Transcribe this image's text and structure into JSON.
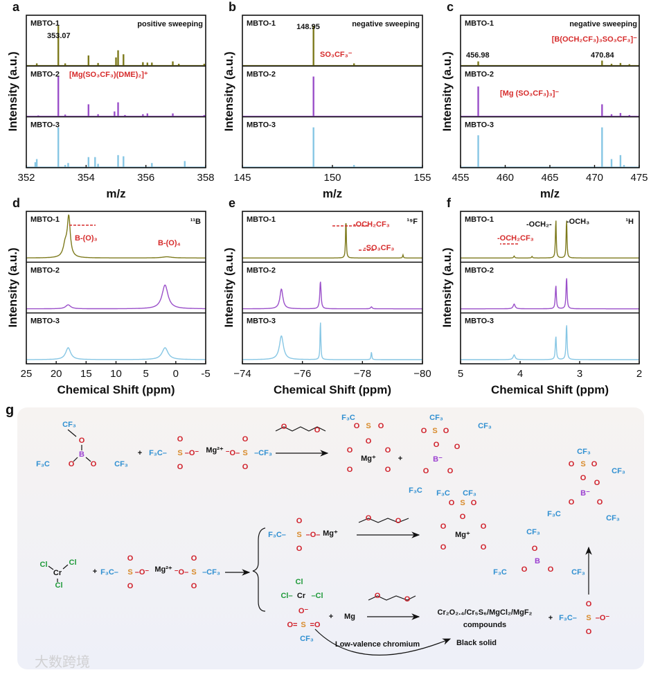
{
  "colors": {
    "MBTO-1": "#7d7a1c",
    "MBTO-2": "#9a4fc9",
    "MBTO-3": "#86c6e4",
    "annotation_red": "#d62b2b"
  },
  "chart_data": [
    {
      "panel": "a",
      "type": "bar",
      "title": "",
      "xlabel": "m/z",
      "ylabel": "Intensity (a.u.)",
      "xlim": [
        352,
        358
      ],
      "xticks": [
        "352",
        "354",
        "356",
        "358"
      ],
      "series": [
        {
          "name": "MBTO-1",
          "peaks": [
            [
              352.35,
              0.05
            ],
            [
              353.07,
              1.0
            ],
            [
              353.3,
              0.05
            ],
            [
              354.08,
              0.25
            ],
            [
              354.4,
              0.06
            ],
            [
              355.0,
              0.2
            ],
            [
              355.07,
              0.38
            ],
            [
              355.25,
              0.28
            ],
            [
              355.9,
              0.08
            ],
            [
              356.05,
              0.07
            ],
            [
              356.2,
              0.07
            ],
            [
              356.9,
              0.1
            ],
            [
              357.1,
              0.04
            ],
            [
              357.95,
              0.04
            ]
          ]
        },
        {
          "name": "MBTO-2",
          "peaks": [
            [
              352.4,
              0.02
            ],
            [
              353.07,
              1.0
            ],
            [
              353.3,
              0.04
            ],
            [
              354.08,
              0.3
            ],
            [
              354.4,
              0.05
            ],
            [
              354.95,
              0.12
            ],
            [
              355.07,
              0.35
            ],
            [
              355.3,
              0.03
            ],
            [
              355.9,
              0.05
            ],
            [
              356.05,
              0.07
            ],
            [
              356.9,
              0.07
            ],
            [
              357.95,
              0.03
            ]
          ]
        },
        {
          "name": "MBTO-3",
          "peaks": [
            [
              352.3,
              0.12
            ],
            [
              352.35,
              0.2
            ],
            [
              353.07,
              1.0
            ],
            [
              353.3,
              0.05
            ],
            [
              353.4,
              0.1
            ],
            [
              354.08,
              0.25
            ],
            [
              354.3,
              0.25
            ],
            [
              354.4,
              0.08
            ],
            [
              355.07,
              0.3
            ],
            [
              355.25,
              0.27
            ],
            [
              356.2,
              0.1
            ],
            [
              357.3,
              0.15
            ]
          ]
        }
      ],
      "annotations": [
        "353.07",
        "positive sweeping",
        "[Mg(SO₃CF₃)(DME)₂]⁺"
      ]
    },
    {
      "panel": "b",
      "type": "bar",
      "title": "",
      "xlabel": "m/z",
      "ylabel": "Intensity (a.u.)",
      "xlim": [
        145,
        155
      ],
      "xticks": [
        "145",
        "150",
        "155"
      ],
      "series": [
        {
          "name": "MBTO-1",
          "peaks": [
            [
              148.95,
              1.0
            ],
            [
              151.2,
              0.05
            ]
          ]
        },
        {
          "name": "MBTO-2",
          "peaks": [
            [
              148.95,
              1.0
            ]
          ]
        },
        {
          "name": "MBTO-3",
          "peaks": [
            [
              148.95,
              1.0
            ],
            [
              151.2,
              0.05
            ]
          ]
        }
      ],
      "annotations": [
        "148.95",
        "negative sweeping",
        "SO₃CF₃⁻"
      ]
    },
    {
      "panel": "c",
      "type": "bar",
      "title": "",
      "xlabel": "m/z",
      "ylabel": "Intensity (a.u.)",
      "xlim": [
        455,
        475
      ],
      "xticks": [
        "455",
        "460",
        "465",
        "470",
        "475"
      ],
      "series": [
        {
          "name": "MBTO-1",
          "peaks": [
            [
              456.98,
              0.1
            ],
            [
              470.84,
              0.12
            ],
            [
              471.9,
              0.04
            ],
            [
              472.9,
              0.06
            ],
            [
              473.9,
              0.03
            ]
          ]
        },
        {
          "name": "MBTO-2",
          "peaks": [
            [
              456.98,
              0.75
            ],
            [
              470.84,
              0.3
            ],
            [
              471.9,
              0.05
            ],
            [
              472.9,
              0.08
            ],
            [
              473.9,
              0.03
            ]
          ]
        },
        {
          "name": "MBTO-3",
          "peaks": [
            [
              456.98,
              0.8
            ],
            [
              470.84,
              1.0
            ],
            [
              471.9,
              0.2
            ],
            [
              472.9,
              0.3
            ],
            [
              473.3,
              0.05
            ]
          ]
        }
      ],
      "annotations": [
        "negative sweeping",
        "[B(OCH₂CF₃)₃SO₃CF₃]⁻",
        "456.98",
        "470.84",
        "[Mg (SO₃CF₃)₃]⁻"
      ]
    },
    {
      "panel": "d",
      "type": "line",
      "title": "",
      "xlabel": "Chemical Shift (ppm)",
      "ylabel": "Intensity (a.u.)",
      "xlim": [
        25,
        -5
      ],
      "xticks": [
        "25",
        "20",
        "15",
        "10",
        "5",
        "0",
        "-5"
      ],
      "series": [
        {
          "name": "MBTO-1",
          "peaks": [
            [
              18.5,
              0.3,
              0.4
            ],
            [
              17.9,
              1.0,
              0.3
            ],
            [
              1.5,
              0.03,
              1.0
            ]
          ]
        },
        {
          "name": "MBTO-2",
          "peaks": [
            [
              18.0,
              0.1,
              0.5
            ],
            [
              1.8,
              0.6,
              0.6
            ]
          ]
        },
        {
          "name": "MBTO-3",
          "peaks": [
            [
              18.0,
              0.3,
              0.5
            ],
            [
              1.8,
              0.3,
              0.6
            ]
          ]
        }
      ],
      "annotations": [
        "¹¹B",
        "B-(O)₃",
        "B-(O)₄"
      ]
    },
    {
      "panel": "e",
      "type": "line",
      "title": "",
      "xlabel": "Chemical Shift (ppm)",
      "ylabel": "Intensity (a.u.)",
      "xlim": [
        -74,
        -80
      ],
      "xticks": [
        "−74",
        "−76",
        "−78",
        "−80"
      ],
      "series": [
        {
          "name": "MBTO-1",
          "peaks": [
            [
              -77.45,
              1.0,
              0.015
            ],
            [
              -79.35,
              0.08,
              0.015
            ]
          ]
        },
        {
          "name": "MBTO-2",
          "peaks": [
            [
              -75.3,
              0.5,
              0.06
            ],
            [
              -76.6,
              0.7,
              0.025
            ],
            [
              -78.3,
              0.05,
              0.03
            ]
          ]
        },
        {
          "name": "MBTO-3",
          "peaks": [
            [
              -75.3,
              0.6,
              0.08
            ],
            [
              -76.6,
              1.0,
              0.015
            ],
            [
              -78.3,
              0.2,
              0.015
            ]
          ]
        }
      ],
      "annotations": [
        "¹⁹F",
        "-OCH₂CF₃",
        "-SO₃CF₃"
      ]
    },
    {
      "panel": "f",
      "type": "line",
      "title": "",
      "xlabel": "Chemical Shift (ppm)",
      "ylabel": "Intensity (a.u.)",
      "xlim": [
        5,
        2
      ],
      "xticks": [
        "5",
        "4",
        "3",
        "2"
      ],
      "series": [
        {
          "name": "MBTO-1",
          "peaks": [
            [
              3.4,
              1.0,
              0.008
            ],
            [
              3.22,
              1.0,
              0.008
            ],
            [
              3.8,
              0.04,
              0.01
            ],
            [
              4.1,
              0.05,
              0.01
            ]
          ]
        },
        {
          "name": "MBTO-2",
          "peaks": [
            [
              3.4,
              0.6,
              0.01
            ],
            [
              3.22,
              0.8,
              0.01
            ],
            [
              4.1,
              0.12,
              0.02
            ]
          ]
        },
        {
          "name": "MBTO-3",
          "peaks": [
            [
              3.4,
              0.6,
              0.01
            ],
            [
              3.22,
              0.9,
              0.01
            ],
            [
              4.1,
              0.12,
              0.02
            ]
          ]
        }
      ],
      "annotations": [
        "¹H",
        "-OCH₂-",
        "-OCH₃",
        "-OCH₂CF₃"
      ]
    }
  ],
  "panel_g": {
    "label": "g",
    "items": [
      "CF₃",
      "O",
      "B",
      "O",
      "O",
      "F₃C",
      "CF₃",
      "+",
      "F₃C–",
      "S",
      "O",
      "O",
      "–O⁻",
      "Mg²⁺",
      "⁻O–",
      "S",
      "O",
      "O",
      "–CF₃",
      "O",
      "O",
      "F₃C",
      "S",
      "O",
      "O",
      "O",
      "Mg⁺",
      "O",
      "O",
      "O",
      "O",
      "+",
      "CF₃",
      "O",
      "S",
      "O",
      "O",
      "B⁻",
      "O",
      "O",
      "O",
      "CF₃",
      "F₃C",
      "CF₃",
      "Cl",
      "Cl",
      "Cr",
      "Cl",
      "+",
      "F₃C–",
      "S",
      "O",
      "O",
      "–O⁻",
      "Mg²⁺",
      "⁻O–",
      "S",
      "O",
      "O",
      "–CF₃",
      "F₃C–",
      "S",
      "O",
      "O",
      "–O–",
      "Mg⁺",
      "O",
      "O",
      "F₃C",
      "S",
      "O",
      "O",
      "O",
      "Mg⁺",
      "O",
      "O",
      "O",
      "O",
      "Cl",
      "Cl–",
      "Cr",
      "–Cl",
      "O⁻",
      "O=",
      "S",
      "=O",
      "CF₃",
      "+",
      "Mg",
      "O",
      "O",
      "Cr₂O₂.₄/Cr₅S₆/MgCl₂/MgF₂",
      "compounds",
      "+",
      "F₃C–",
      "S",
      "O",
      "O",
      "–O⁻",
      "CF₃",
      "O",
      "B",
      "O",
      "O",
      "F₃C",
      "CF₃",
      "CF₃",
      "O",
      "S",
      "O",
      "O",
      "B⁻",
      "O",
      "O",
      "O",
      "CF₃",
      "F₃C",
      "CF₃",
      "Low-valence chromium",
      "Black solid"
    ]
  },
  "watermark": "大数跨境"
}
